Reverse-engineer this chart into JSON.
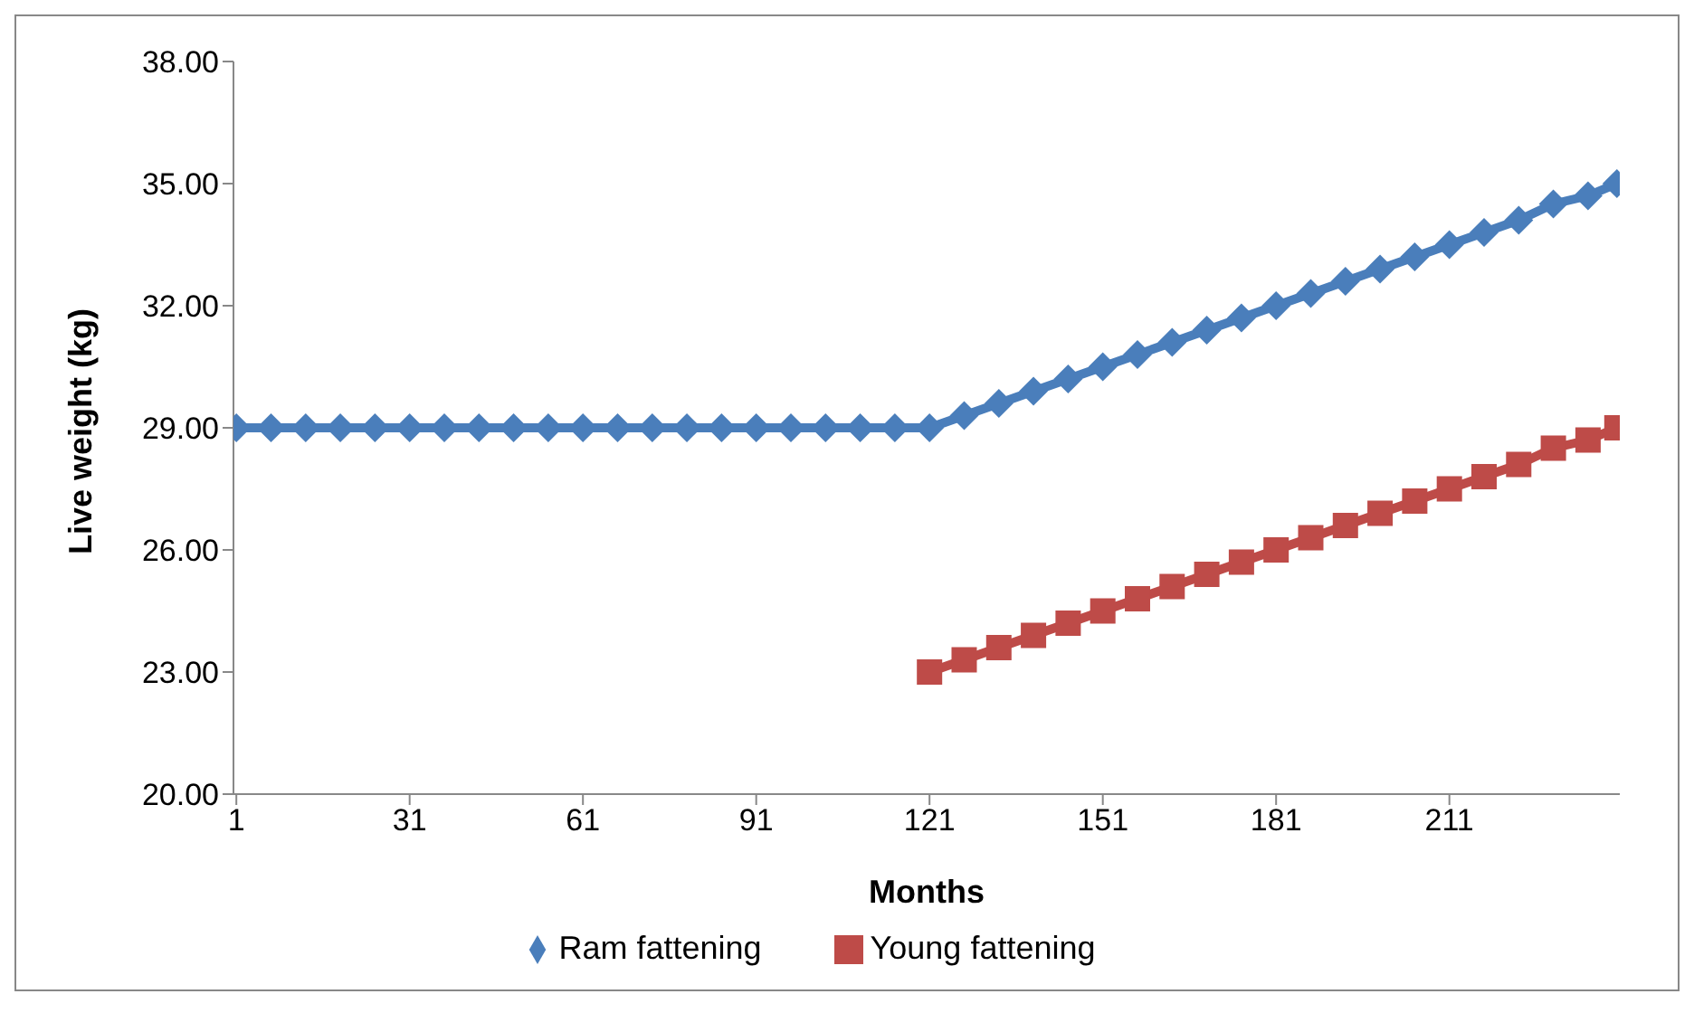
{
  "chart_data": {
    "type": "line",
    "xlabel": "Months",
    "ylabel": "Live weight (kg)",
    "xlim": [
      0.5,
      240.5
    ],
    "xticks": [
      1,
      31,
      61,
      91,
      121,
      151,
      181,
      211
    ],
    "ylim": [
      20,
      38
    ],
    "yticks": [
      {
        "value": 20,
        "label": "20.00"
      },
      {
        "value": 23,
        "label": "23.00"
      },
      {
        "value": 26,
        "label": "26.00"
      },
      {
        "value": 29,
        "label": "29.00"
      },
      {
        "value": 32,
        "label": "32.00"
      },
      {
        "value": 35,
        "label": "35.00"
      },
      {
        "value": 38,
        "label": "38.00"
      }
    ],
    "grid": false,
    "legend": "bottom",
    "series": [
      {
        "name": "Ram fattening",
        "color": "#4a7ebb",
        "marker": "diamond",
        "x": [
          1,
          7,
          13,
          19,
          25,
          31,
          37,
          43,
          49,
          55,
          61,
          67,
          73,
          79,
          85,
          91,
          97,
          103,
          109,
          115,
          121,
          127,
          133,
          139,
          145,
          151,
          157,
          163,
          169,
          175,
          181,
          187,
          193,
          199,
          205,
          211,
          217,
          223,
          229,
          235,
          240
        ],
        "values": [
          29,
          29,
          29,
          29,
          29,
          29,
          29,
          29,
          29,
          29,
          29,
          29,
          29,
          29,
          29,
          29,
          29,
          29,
          29,
          29,
          29,
          29.3,
          29.6,
          29.9,
          30.2,
          30.5,
          30.8,
          31.1,
          31.4,
          31.7,
          32.0,
          32.3,
          32.6,
          32.9,
          33.2,
          33.5,
          33.8,
          34.1,
          34.5,
          34.7,
          35.0
        ]
      },
      {
        "name": "Young fattening",
        "color": "#be4b48",
        "marker": "square",
        "x": [
          121,
          127,
          133,
          139,
          145,
          151,
          157,
          163,
          169,
          175,
          181,
          187,
          193,
          199,
          205,
          211,
          217,
          223,
          229,
          235,
          240
        ],
        "values": [
          23.0,
          23.3,
          23.6,
          23.9,
          24.2,
          24.5,
          24.8,
          25.1,
          25.4,
          25.7,
          26.0,
          26.3,
          26.6,
          26.9,
          27.2,
          27.5,
          27.8,
          28.1,
          28.5,
          28.7,
          29.0
        ]
      }
    ]
  }
}
